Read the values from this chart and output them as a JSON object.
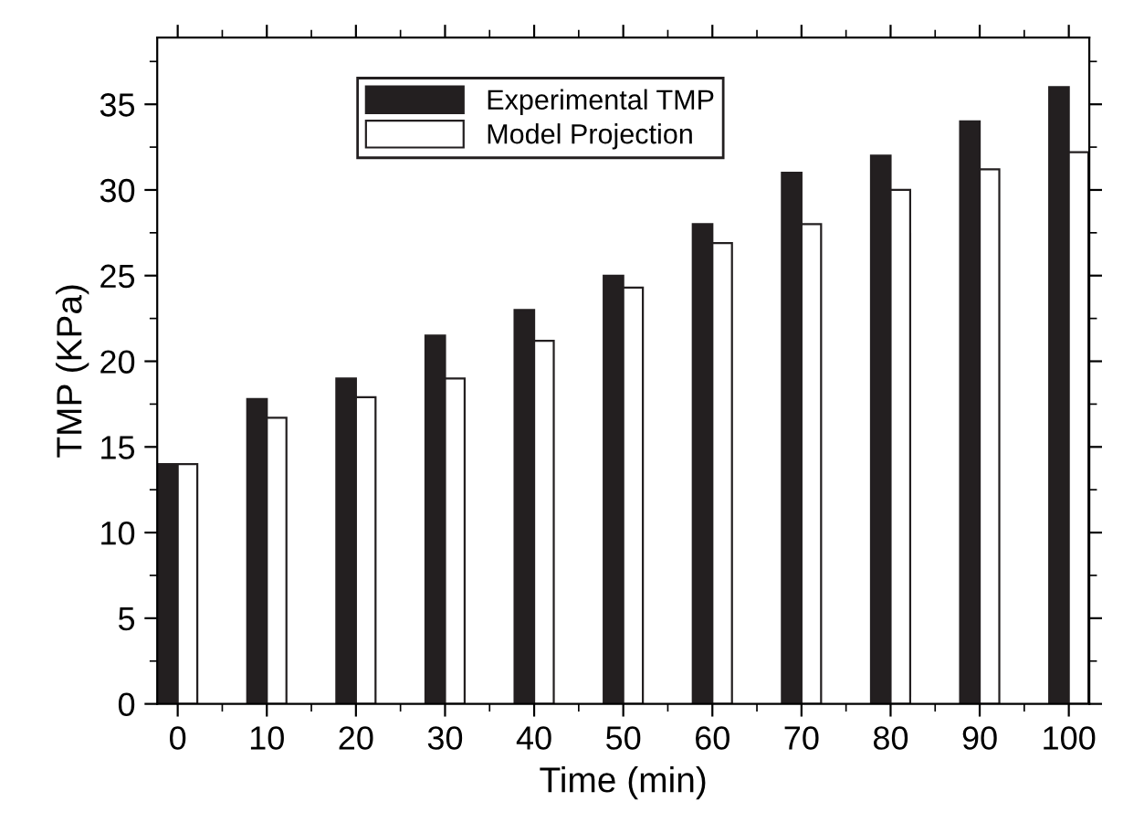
{
  "chart_data": {
    "type": "bar",
    "xlabel": "Time (min)",
    "ylabel": "TMP (KPa)",
    "x": [
      0,
      10,
      20,
      30,
      40,
      50,
      60,
      70,
      80,
      90,
      100
    ],
    "series": [
      {
        "name": "Experimental TMP",
        "color": "#231f20",
        "values": [
          14,
          17.8,
          19,
          21.5,
          23,
          25,
          28,
          31,
          32,
          34,
          36
        ]
      },
      {
        "name": "Model Projection",
        "color": "#ffffff",
        "values": [
          14,
          16.7,
          17.9,
          19,
          21.2,
          24.3,
          26.9,
          28,
          30,
          31.2,
          32.2
        ]
      }
    ],
    "xlim": [
      -2.3,
      102.3
    ],
    "xticks": [
      0,
      10,
      20,
      30,
      40,
      50,
      60,
      70,
      80,
      90,
      100
    ],
    "ylim": [
      0,
      38.9
    ],
    "yticks": [
      0,
      5,
      10,
      15,
      20,
      25,
      30,
      35
    ],
    "grid": false,
    "legend": "top left"
  }
}
